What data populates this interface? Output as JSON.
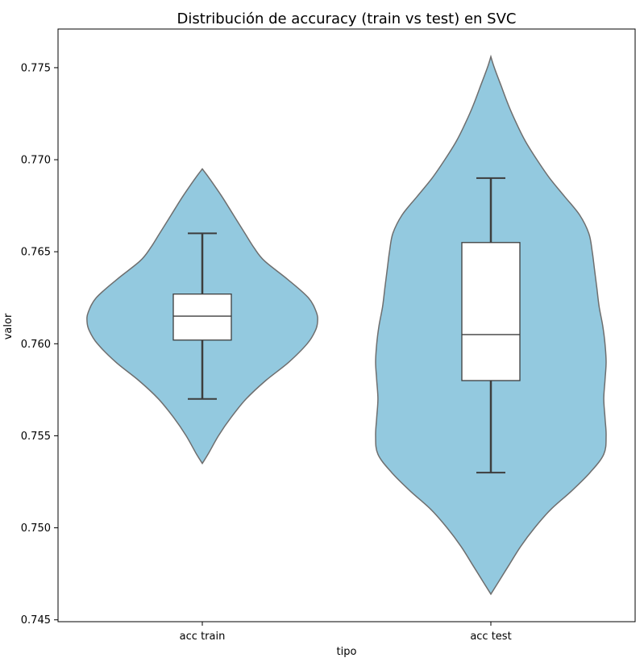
{
  "chart_data": {
    "type": "violin",
    "title": "Distribución de accuracy (train vs test) en SVC",
    "xlabel": "tipo",
    "ylabel": "valor",
    "ylim": [
      0.7449,
      0.7771
    ],
    "yticks": [
      0.745,
      0.75,
      0.755,
      0.76,
      0.765,
      0.77,
      0.775
    ],
    "ytick_labels": [
      "0.745",
      "0.750",
      "0.755",
      "0.760",
      "0.765",
      "0.770",
      "0.775"
    ],
    "categories": [
      "acc train",
      "acc test"
    ],
    "grid": false,
    "colors": {
      "violin_fill": "#93c9df",
      "violin_edge": "#6e6e6e",
      "box_fill": "#ffffff",
      "box_edge": "#3d3d3d"
    },
    "series": [
      {
        "category": "acc train",
        "min": 0.757,
        "q1": 0.7602,
        "median": 0.7615,
        "q3": 0.7627,
        "max": 0.766,
        "kde_range": [
          0.7535,
          0.7695
        ],
        "density": [
          [
            0.7535,
            0.0
          ],
          [
            0.754,
            0.05
          ],
          [
            0.755,
            0.14
          ],
          [
            0.756,
            0.25
          ],
          [
            0.757,
            0.38
          ],
          [
            0.758,
            0.55
          ],
          [
            0.759,
            0.75
          ],
          [
            0.76,
            0.91
          ],
          [
            0.7607,
            0.98
          ],
          [
            0.7612,
            1.0
          ],
          [
            0.7617,
            0.99
          ],
          [
            0.7625,
            0.92
          ],
          [
            0.7635,
            0.74
          ],
          [
            0.7645,
            0.54
          ],
          [
            0.7652,
            0.45
          ],
          [
            0.766,
            0.37
          ],
          [
            0.767,
            0.27
          ],
          [
            0.768,
            0.17
          ],
          [
            0.769,
            0.06
          ],
          [
            0.7695,
            0.0
          ]
        ]
      },
      {
        "category": "acc test",
        "min": 0.753,
        "q1": 0.758,
        "median": 0.7605,
        "q3": 0.7655,
        "max": 0.769,
        "kde_range": [
          0.7464,
          0.7756
        ],
        "density": [
          [
            0.7464,
            0.0
          ],
          [
            0.747,
            0.06
          ],
          [
            0.748,
            0.16
          ],
          [
            0.749,
            0.26
          ],
          [
            0.75,
            0.38
          ],
          [
            0.751,
            0.52
          ],
          [
            0.752,
            0.7
          ],
          [
            0.753,
            0.86
          ],
          [
            0.754,
            0.98
          ],
          [
            0.755,
            1.0
          ],
          [
            0.756,
            0.99
          ],
          [
            0.757,
            0.98
          ],
          [
            0.758,
            0.99
          ],
          [
            0.759,
            1.0
          ],
          [
            0.76,
            0.99
          ],
          [
            0.761,
            0.97
          ],
          [
            0.762,
            0.94
          ],
          [
            0.763,
            0.92
          ],
          [
            0.764,
            0.9
          ],
          [
            0.765,
            0.88
          ],
          [
            0.766,
            0.85
          ],
          [
            0.767,
            0.77
          ],
          [
            0.768,
            0.64
          ],
          [
            0.769,
            0.51
          ],
          [
            0.77,
            0.4
          ],
          [
            0.771,
            0.3
          ],
          [
            0.772,
            0.22
          ],
          [
            0.773,
            0.15
          ],
          [
            0.774,
            0.09
          ],
          [
            0.775,
            0.03
          ],
          [
            0.7756,
            0.0
          ]
        ]
      }
    ]
  }
}
